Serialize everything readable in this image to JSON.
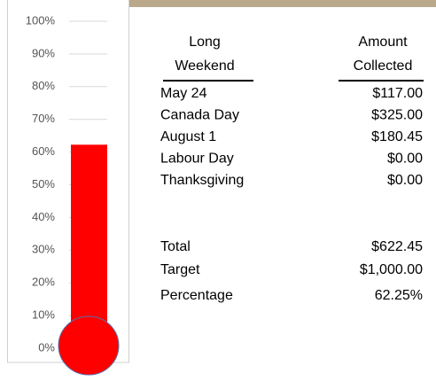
{
  "chart_data": {
    "type": "thermometer",
    "values": [
      62.25
    ],
    "color": "#ff0000",
    "ylim": [
      0,
      100
    ],
    "yticks": [
      {
        "value": 0,
        "label": "0%"
      },
      {
        "value": 10,
        "label": "10%"
      },
      {
        "value": 20,
        "label": "20%"
      },
      {
        "value": 30,
        "label": "30%"
      },
      {
        "value": 40,
        "label": "40%"
      },
      {
        "value": 50,
        "label": "50%"
      },
      {
        "value": 60,
        "label": "60%"
      },
      {
        "value": 70,
        "label": "70%"
      },
      {
        "value": 80,
        "label": "80%"
      },
      {
        "value": 90,
        "label": "90%"
      },
      {
        "value": 100,
        "label": "100%"
      }
    ],
    "grid": true
  },
  "table": {
    "header": [
      [
        "Long",
        "Weekend"
      ],
      [
        "Amount",
        "Collected"
      ]
    ],
    "rows": [
      [
        "May 24",
        "$117.00"
      ],
      [
        "Canada Day",
        "$325.00"
      ],
      [
        "August 1",
        "$180.45"
      ],
      [
        "Labour Day",
        "$0.00"
      ],
      [
        "Thanksgiving",
        "$0.00"
      ]
    ],
    "summary": [
      [
        "Total",
        "$622.45"
      ],
      [
        "Target",
        "$1,000.00"
      ],
      [
        "Percentage",
        "62.25%"
      ]
    ]
  }
}
